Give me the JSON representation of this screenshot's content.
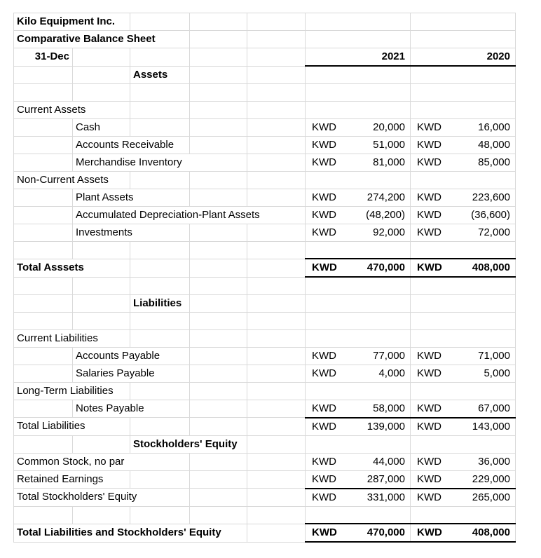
{
  "meta": {
    "company": "Kilo Equipment Inc.",
    "report_title": "Comparative Balance Sheet",
    "date_label": "31-Dec",
    "currency": "KWD"
  },
  "columns": {
    "years": [
      "2021",
      "2020"
    ],
    "label_col_widths": [
      84,
      82,
      85,
      82,
      83
    ],
    "value_col_width": 150
  },
  "colors": {
    "gridline": "#d9d9d9",
    "rule_line": "#000000",
    "text": "#000000",
    "background": "#ffffff"
  },
  "rows": [
    {
      "label": "Kilo Equipment Inc.",
      "col": 0,
      "span": 2,
      "bold": true
    },
    {
      "label": "Comparative Balance Sheet",
      "col": 0,
      "span": 3,
      "bold": true
    },
    {
      "label": "31-Dec",
      "col": 0,
      "span": 1,
      "bold": true,
      "align": "right",
      "year_cells": [
        "2021",
        "2020"
      ],
      "rule_bottom": true
    },
    {
      "label": "Assets",
      "col": 2,
      "span": 1,
      "bold": true
    },
    {},
    {
      "label": "Current Assets",
      "col": 0,
      "span": 2
    },
    {
      "label": "Cash",
      "col": 1,
      "span": 1,
      "cur": "KWD",
      "v2021": "20,000",
      "v2020": "16,000"
    },
    {
      "label": "Accounts Receivable",
      "col": 1,
      "span": 2,
      "cur": "KWD",
      "v2021": "51,000",
      "v2020": "48,000"
    },
    {
      "label": "Merchandise Inventory",
      "col": 1,
      "span": 3,
      "cur": "KWD",
      "v2021": "81,000",
      "v2020": "85,000"
    },
    {
      "label": "Non-Current Assets",
      "col": 0,
      "span": 2
    },
    {
      "label": "Plant Assets",
      "col": 1,
      "span": 2,
      "cur": "KWD",
      "v2021": "274,200",
      "v2020": "223,600"
    },
    {
      "label": "Accumulated Depreciation-Plant Assets",
      "col": 1,
      "span": 4,
      "cur": "KWD",
      "v2021": "(48,200)",
      "v2020": "(36,600)"
    },
    {
      "label": "Investments",
      "col": 1,
      "span": 2,
      "cur": "KWD",
      "v2021": "92,000",
      "v2020": "72,000"
    },
    {},
    {
      "label": "Total Asssets",
      "col": 0,
      "span": 2,
      "bold": true,
      "cur": "KWD",
      "v2021": "470,000",
      "v2020": "408,000",
      "values_bold": true,
      "rule_top": true,
      "rule_bottom": true
    },
    {},
    {
      "label": "Liabilities",
      "col": 2,
      "span": 1,
      "bold": true
    },
    {},
    {
      "label": "Current Liabilities",
      "col": 0,
      "span": 2
    },
    {
      "label": "Accounts Payable",
      "col": 1,
      "span": 2,
      "cur": "KWD",
      "v2021": "77,000",
      "v2020": "71,000"
    },
    {
      "label": "Salaries Payable",
      "col": 1,
      "span": 2,
      "cur": "KWD",
      "v2021": "4,000",
      "v2020": "5,000"
    },
    {
      "label": "Long-Term Liabilities",
      "col": 0,
      "span": 2
    },
    {
      "label": "Notes Payable",
      "col": 1,
      "span": 2,
      "cur": "KWD",
      "v2021": "58,000",
      "v2020": "67,000"
    },
    {
      "label": "Total Liabilities",
      "col": 0,
      "span": 2,
      "cur": "KWD",
      "v2021": "139,000",
      "v2020": "143,000",
      "rule_top": true
    },
    {
      "label": "Stockholders' Equity",
      "col": 2,
      "span": 2,
      "bold": true
    },
    {
      "label": "Common Stock, no par",
      "col": 0,
      "span": 3,
      "cur": "KWD",
      "v2021": "44,000",
      "v2020": "36,000"
    },
    {
      "label": "Retained Earnings",
      "col": 0,
      "span": 2,
      "cur": "KWD",
      "v2021": "287,000",
      "v2020": "229,000"
    },
    {
      "label": "Total Stockholders' Equity",
      "col": 0,
      "span": 3,
      "cur": "KWD",
      "v2021": "331,000",
      "v2020": "265,000",
      "rule_top": true
    },
    {},
    {
      "label": "Total Liabilities and Stockholders' Equity",
      "col": 0,
      "span": 4,
      "bold": true,
      "cur": "KWD",
      "v2021": "470,000",
      "v2020": "408,000",
      "values_bold": true,
      "rule_top": true,
      "rule_bottom": true
    }
  ]
}
